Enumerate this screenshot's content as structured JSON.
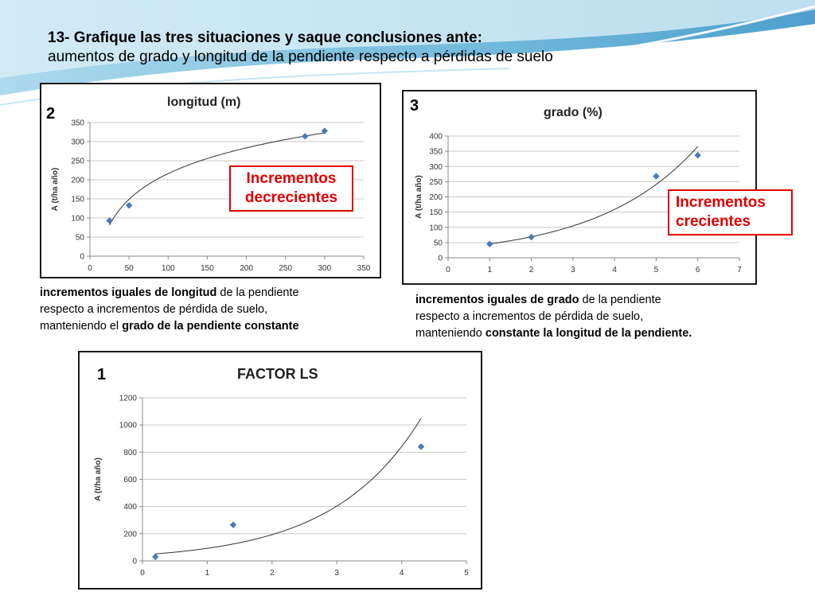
{
  "heading": {
    "line1": "13- Grafique las tres situaciones y saque conclusiones ante:",
    "line2": "aumentos de grado y longitud de la pendiente respecto a pérdidas de  suelo"
  },
  "colors": {
    "marker": "#4a7ab5",
    "annotation": "#e00000",
    "wave": "#5fb0d8"
  },
  "chart_data": [
    {
      "id": "2",
      "type": "scatter",
      "title": "longitud (m)",
      "ylabel": "A (t/ha año)",
      "xlabel": "",
      "xlim": [
        0,
        350
      ],
      "ylim": [
        0,
        350
      ],
      "xticks": [
        0,
        50,
        100,
        150,
        200,
        250,
        300,
        350
      ],
      "yticks": [
        0,
        50,
        100,
        150,
        200,
        250,
        300,
        350
      ],
      "points": [
        [
          25,
          93
        ],
        [
          50,
          133
        ],
        [
          275,
          314
        ],
        [
          300,
          328
        ]
      ],
      "trend": "logarithmic",
      "grid": "horizontal",
      "annotation": [
        "Incrementos",
        "decrecientes"
      ]
    },
    {
      "id": "3",
      "type": "scatter",
      "title": "grado (%)",
      "ylabel": "A (t/ha año)",
      "xlabel": "",
      "xlim": [
        0,
        7
      ],
      "ylim": [
        0,
        400
      ],
      "xticks": [
        0,
        1,
        2,
        3,
        4,
        5,
        6,
        7
      ],
      "yticks": [
        0,
        50,
        100,
        150,
        200,
        250,
        300,
        350,
        400
      ],
      "points": [
        [
          1,
          45
        ],
        [
          2,
          68
        ],
        [
          5,
          268
        ],
        [
          6,
          337
        ]
      ],
      "trend": "exponential",
      "grid": "horizontal",
      "annotation": [
        "Incrementos",
        "crecientes"
      ]
    },
    {
      "id": "1",
      "type": "scatter",
      "title": "FACTOR LS",
      "ylabel": "A (t/ha año)",
      "xlabel": "",
      "xlim": [
        0,
        5
      ],
      "ylim": [
        0,
        1200
      ],
      "xticks": [
        0,
        1,
        2,
        3,
        4,
        5
      ],
      "yticks": [
        0,
        200,
        400,
        600,
        800,
        1000,
        1200
      ],
      "points": [
        [
          0.2,
          30
        ],
        [
          1.4,
          265
        ],
        [
          4.3,
          840
        ]
      ],
      "trend": "exponential",
      "grid": "horizontal",
      "annotation": null
    }
  ],
  "captions": {
    "c2": {
      "b1": "incrementos iguales de longitud",
      "t1": " de la pendiente",
      "t2": "respecto a incrementos  de pérdida de suelo,",
      "t3": "manteniendo el ",
      "b2": "grado de la pendiente constante"
    },
    "c3": {
      "b1": "incrementos iguales de grado",
      "t1": " de la pendiente",
      "t2": "respecto a incrementos de pérdida de suelo,",
      "t3": "manteniendo ",
      "b2": "constante la longitud de la pendiente."
    }
  }
}
